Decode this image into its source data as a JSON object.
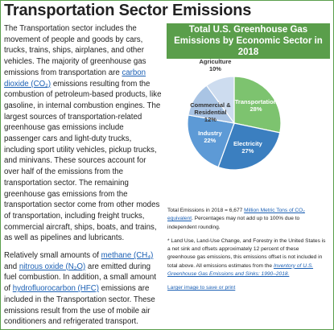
{
  "header": {
    "title": "Transportation Sector Emissions"
  },
  "body": {
    "paragraphs": [
      [
        {
          "text": "The Transportation sector includes the movement of people and goods by cars, trucks, trains, ships, airplanes, and other vehicles. The majority of greenhouse gas emissions from transportation are "
        },
        {
          "link": "carbon dioxide (CO₂)"
        },
        {
          "text": " emissions resulting from the combustion of petroleum-based products, like gasoline, in internal combustion engines. The largest sources of transportation-related greenhouse gas emissions include passenger cars and light-duty trucks, including sport utility vehicles, pickup trucks, and minivans. These sources account for over half of the emissions from the transportation sector. The remaining greenhouse gas emissions from the transportation sector come from other modes of transportation, including freight trucks, commercial aircraft, ships, boats, and trains, as well as pipelines and lubricants."
        }
      ],
      [
        {
          "text": "Relatively small amounts of "
        },
        {
          "link": "methane (CH₄)"
        },
        {
          "text": " and "
        },
        {
          "link": "nitrous oxide (N₂O)"
        },
        {
          "text": " are emitted during fuel combustion. In addition, a small amount of "
        },
        {
          "link": "hydrofluorocarbon (HFC)"
        },
        {
          "text": " emissions are included in the Transportation sector. These emissions result from the use of mobile air conditioners and refrigerated transport."
        }
      ]
    ]
  },
  "chart_data": {
    "type": "pie",
    "title": "Total U.S. Greenhouse Gas Emissions by Economic Sector in 2018",
    "categories": [
      "Transportation",
      "Electricity",
      "Industry",
      "Commercial & Residential",
      "Agriculture"
    ],
    "values": [
      28,
      27,
      22,
      12,
      10
    ],
    "value_labels": [
      "28%",
      "27%",
      "22%",
      "12%",
      "10%"
    ],
    "colors": [
      "#7dc36f",
      "#3b7fc0",
      "#5d9ad6",
      "#a9c4e4",
      "#cddcef"
    ]
  },
  "notes": [
    [
      {
        "text": "Total Emissions in 2018 = 6,677 "
      },
      {
        "link": "Million Metric Tons of CO₂ equivalent"
      },
      {
        "text": ". Percentages may not add up to 100% due to independent rounding."
      }
    ],
    [
      {
        "text": "* Land Use, Land-Use Change, and Forestry in the United States is a net sink and offsets approximately 12 percent of these greenhouse gas emissions, this emissions offset is not included in total above. All emissions estimates from the "
      },
      {
        "link": "Inventory of U.S. Greenhouse Gas Emissions and Sinks: 1990–2018."
      }
    ],
    [
      {
        "link": "Larger image to save or print"
      }
    ]
  ]
}
